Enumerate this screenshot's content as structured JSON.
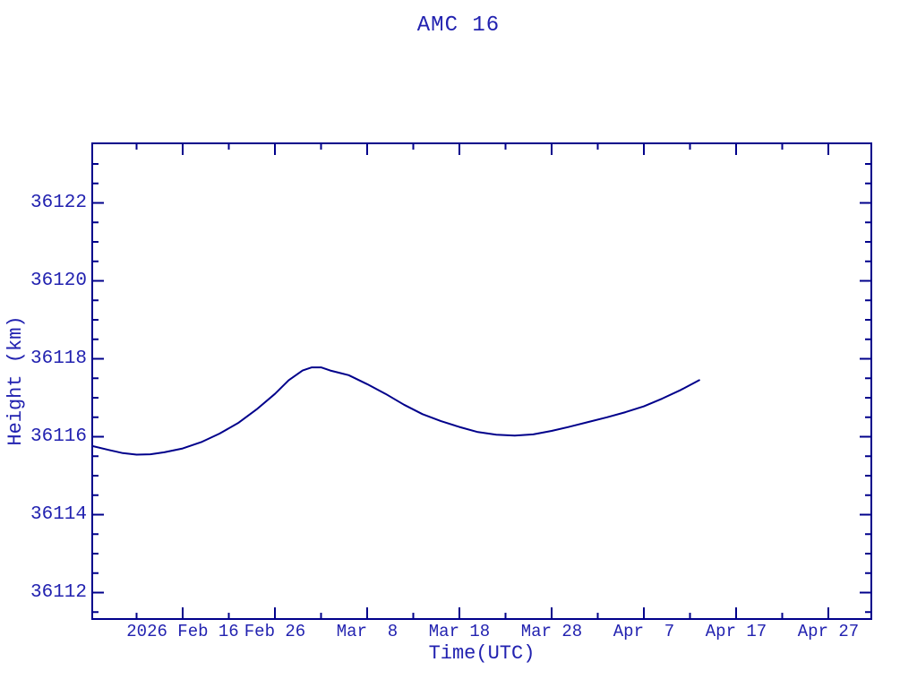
{
  "colors": {
    "background": "#ffffff",
    "text": "#2222b0",
    "line": "#00008b",
    "curve": "#00008b"
  },
  "chart_data": {
    "type": "line",
    "title": "AMC 16",
    "xlabel": "Time(UTC)",
    "ylabel": "Height (km)",
    "grid": false,
    "legend": false,
    "x_axis": {
      "unit": "days relative to 2026 Feb 16",
      "major_ticks": [
        {
          "d": 0,
          "label": "2026 Feb 16"
        },
        {
          "d": 10,
          "label": "Feb 26"
        },
        {
          "d": 20,
          "label": "Mar  8"
        },
        {
          "d": 30,
          "label": "Mar 18"
        },
        {
          "d": 40,
          "label": "Mar 28"
        },
        {
          "d": 50,
          "label": "Apr  7"
        },
        {
          "d": 60,
          "label": "Apr 17"
        },
        {
          "d": 70,
          "label": "Apr 27"
        }
      ],
      "minor_step_days": 5,
      "range_days": [
        -9.8,
        74.7
      ]
    },
    "y_axis": {
      "major_ticks": [
        36112,
        36114,
        36116,
        36118,
        36120,
        36122
      ],
      "minor_step_km": 0.5,
      "range_km": [
        36111.3,
        36123.5
      ]
    },
    "series": [
      {
        "name": "AMC 16 orbit height",
        "points": [
          {
            "date": "Feb 6",
            "d": -9.8,
            "h": 36115.76
          },
          {
            "date": "Feb 8",
            "d": -8,
            "h": 36115.66
          },
          {
            "date": "Feb 10",
            "d": -6.5,
            "h": 36115.58
          },
          {
            "date": "Feb 11",
            "d": -5,
            "h": 36115.54
          },
          {
            "date": "Feb 13",
            "d": -3.5,
            "h": 36115.55
          },
          {
            "date": "Feb 14",
            "d": -2,
            "h": 36115.6
          },
          {
            "date": "Feb 16",
            "d": 0,
            "h": 36115.7
          },
          {
            "date": "Feb 18",
            "d": 2,
            "h": 36115.86
          },
          {
            "date": "Feb 20",
            "d": 4,
            "h": 36116.08
          },
          {
            "date": "Feb 22",
            "d": 6,
            "h": 36116.35
          },
          {
            "date": "Feb 24",
            "d": 8,
            "h": 36116.7
          },
          {
            "date": "Feb 26",
            "d": 10,
            "h": 36117.1
          },
          {
            "date": "Feb 27",
            "d": 11.5,
            "h": 36117.45
          },
          {
            "date": "Mar 1",
            "d": 13,
            "h": 36117.7
          },
          {
            "date": "Mar 2",
            "d": 14,
            "h": 36117.78
          },
          {
            "date": "Mar 3",
            "d": 15,
            "h": 36117.78
          },
          {
            "date": "Mar 4",
            "d": 16,
            "h": 36117.7
          },
          {
            "date": "Mar 6",
            "d": 18,
            "h": 36117.58
          },
          {
            "date": "Mar 8",
            "d": 20,
            "h": 36117.35
          },
          {
            "date": "Mar 10",
            "d": 22,
            "h": 36117.1
          },
          {
            "date": "Mar 12",
            "d": 24,
            "h": 36116.82
          },
          {
            "date": "Mar 14",
            "d": 26,
            "h": 36116.58
          },
          {
            "date": "Mar 16",
            "d": 28,
            "h": 36116.4
          },
          {
            "date": "Mar 18",
            "d": 30,
            "h": 36116.25
          },
          {
            "date": "Mar 20",
            "d": 32,
            "h": 36116.12
          },
          {
            "date": "Mar 22",
            "d": 34,
            "h": 36116.05
          },
          {
            "date": "Mar 24",
            "d": 36,
            "h": 36116.03
          },
          {
            "date": "Mar 26",
            "d": 38,
            "h": 36116.06
          },
          {
            "date": "Mar 28",
            "d": 40,
            "h": 36116.15
          },
          {
            "date": "Mar 30",
            "d": 42,
            "h": 36116.26
          },
          {
            "date": "Apr 1",
            "d": 44,
            "h": 36116.38
          },
          {
            "date": "Apr 3",
            "d": 46,
            "h": 36116.5
          },
          {
            "date": "Apr 5",
            "d": 48,
            "h": 36116.63
          },
          {
            "date": "Apr 7",
            "d": 50,
            "h": 36116.78
          },
          {
            "date": "Apr 9",
            "d": 52,
            "h": 36116.98
          },
          {
            "date": "Apr 11",
            "d": 54,
            "h": 36117.2
          },
          {
            "date": "Apr 13",
            "d": 56,
            "h": 36117.45
          }
        ]
      }
    ]
  }
}
